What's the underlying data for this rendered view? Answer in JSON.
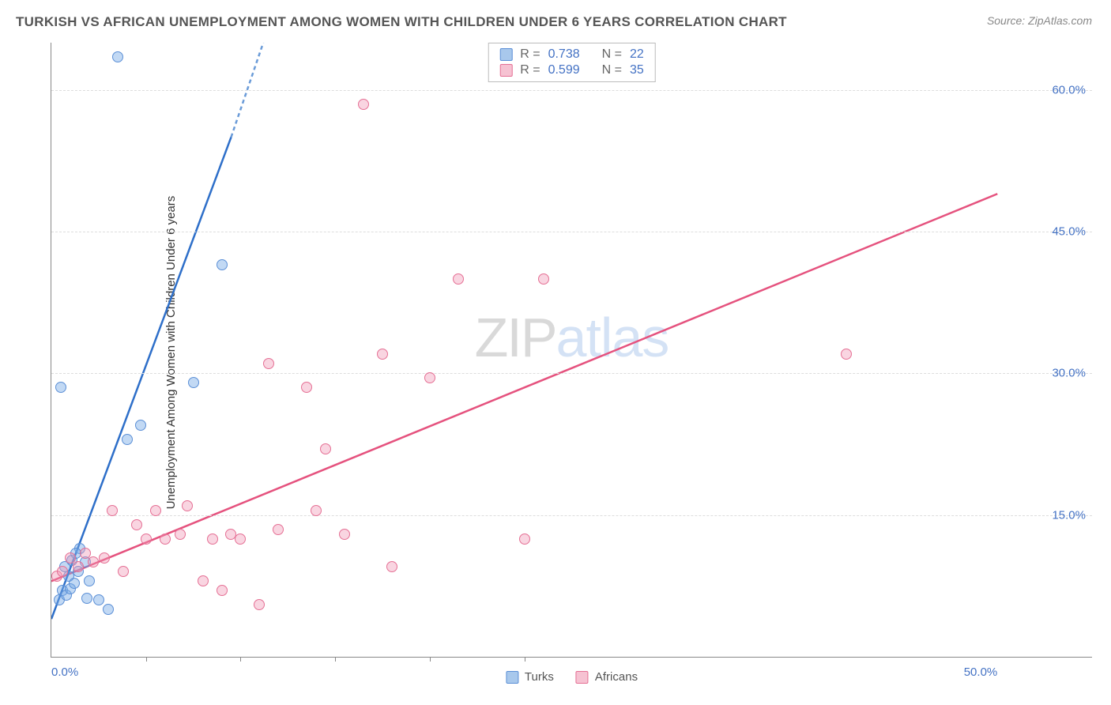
{
  "title": "TURKISH VS AFRICAN UNEMPLOYMENT AMONG WOMEN WITH CHILDREN UNDER 6 YEARS CORRELATION CHART",
  "source": "Source: ZipAtlas.com",
  "y_axis_label": "Unemployment Among Women with Children Under 6 years",
  "watermark": {
    "part1": "ZIP",
    "part2": "atlas"
  },
  "chart": {
    "type": "scatter",
    "x_min": 0,
    "x_max": 55,
    "y_min": 0,
    "y_max": 65,
    "x_ticks_labeled": [
      {
        "value": 0,
        "label": "0.0%"
      },
      {
        "value": 50,
        "label": "50.0%"
      }
    ],
    "x_ticks_unlabeled": [
      5,
      10,
      15,
      20,
      25
    ],
    "y_ticks": [
      {
        "value": 15,
        "label": "15.0%"
      },
      {
        "value": 30,
        "label": "30.0%"
      },
      {
        "value": 45,
        "label": "45.0%"
      },
      {
        "value": 60,
        "label": "60.0%"
      }
    ],
    "series": [
      {
        "name": "Turks",
        "swatch_fill": "#a8c8ec",
        "swatch_border": "#5b8fd6",
        "marker_fill": "rgba(120,170,230,0.45)",
        "marker_border": "#5b8fd6",
        "line_color": "#2e6fc9",
        "line_dash_color": "#6a9bd8",
        "R": "0.738",
        "N": "22",
        "regression": {
          "x1": 0,
          "y1": 4,
          "x2_solid": 9.5,
          "y2_solid": 55,
          "x2_dash": 11.2,
          "y2_dash": 65
        },
        "points": [
          {
            "x": 0.4,
            "y": 6.0
          },
          {
            "x": 0.6,
            "y": 7.0
          },
          {
            "x": 0.8,
            "y": 6.5
          },
          {
            "x": 1.0,
            "y": 7.2
          },
          {
            "x": 0.9,
            "y": 8.5
          },
          {
            "x": 1.2,
            "y": 7.8
          },
          {
            "x": 0.7,
            "y": 9.5
          },
          {
            "x": 1.1,
            "y": 10.2
          },
          {
            "x": 1.4,
            "y": 9.0
          },
          {
            "x": 1.5,
            "y": 11.5
          },
          {
            "x": 1.8,
            "y": 10.0
          },
          {
            "x": 1.3,
            "y": 11.0
          },
          {
            "x": 2.0,
            "y": 8.0
          },
          {
            "x": 1.9,
            "y": 6.2
          },
          {
            "x": 2.5,
            "y": 6.0
          },
          {
            "x": 3.0,
            "y": 5.0
          },
          {
            "x": 0.5,
            "y": 28.5
          },
          {
            "x": 4.0,
            "y": 23.0
          },
          {
            "x": 4.7,
            "y": 24.5
          },
          {
            "x": 3.5,
            "y": 63.5
          },
          {
            "x": 7.5,
            "y": 29.0
          },
          {
            "x": 9.0,
            "y": 41.5
          }
        ]
      },
      {
        "name": "Africans",
        "swatch_fill": "#f6c2d2",
        "swatch_border": "#e56f94",
        "marker_fill": "rgba(240,150,180,0.40)",
        "marker_border": "#e56f94",
        "line_color": "#e5527e",
        "R": "0.599",
        "N": "35",
        "regression": {
          "x1": 0,
          "y1": 8,
          "x2_solid": 50,
          "y2_solid": 49
        },
        "points": [
          {
            "x": 0.3,
            "y": 8.5
          },
          {
            "x": 0.6,
            "y": 9.0
          },
          {
            "x": 1.0,
            "y": 10.5
          },
          {
            "x": 1.4,
            "y": 9.5
          },
          {
            "x": 2.2,
            "y": 10.0
          },
          {
            "x": 2.8,
            "y": 10.5
          },
          {
            "x": 3.2,
            "y": 15.5
          },
          {
            "x": 3.8,
            "y": 9.0
          },
          {
            "x": 4.5,
            "y": 14.0
          },
          {
            "x": 5.0,
            "y": 12.5
          },
          {
            "x": 5.5,
            "y": 15.5
          },
          {
            "x": 6.0,
            "y": 12.5
          },
          {
            "x": 6.8,
            "y": 13.0
          },
          {
            "x": 7.2,
            "y": 16.0
          },
          {
            "x": 8.0,
            "y": 8.0
          },
          {
            "x": 8.5,
            "y": 12.5
          },
          {
            "x": 9.0,
            "y": 7.0
          },
          {
            "x": 9.5,
            "y": 13.0
          },
          {
            "x": 10.0,
            "y": 12.5
          },
          {
            "x": 11.0,
            "y": 5.5
          },
          {
            "x": 11.5,
            "y": 31.0
          },
          {
            "x": 12.0,
            "y": 13.5
          },
          {
            "x": 13.5,
            "y": 28.5
          },
          {
            "x": 14.0,
            "y": 15.5
          },
          {
            "x": 14.5,
            "y": 22.0
          },
          {
            "x": 15.5,
            "y": 13.0
          },
          {
            "x": 16.5,
            "y": 58.5
          },
          {
            "x": 17.5,
            "y": 32.0
          },
          {
            "x": 18.0,
            "y": 9.5
          },
          {
            "x": 20.0,
            "y": 29.5
          },
          {
            "x": 21.5,
            "y": 40.0
          },
          {
            "x": 25.0,
            "y": 12.5
          },
          {
            "x": 26.0,
            "y": 40.0
          },
          {
            "x": 42.0,
            "y": 32.0
          },
          {
            "x": 1.8,
            "y": 11.0
          }
        ]
      }
    ],
    "background_color": "#ffffff",
    "axis_color": "#888888",
    "grid_color": "#dddddd",
    "tick_label_color": "#4472c4"
  }
}
